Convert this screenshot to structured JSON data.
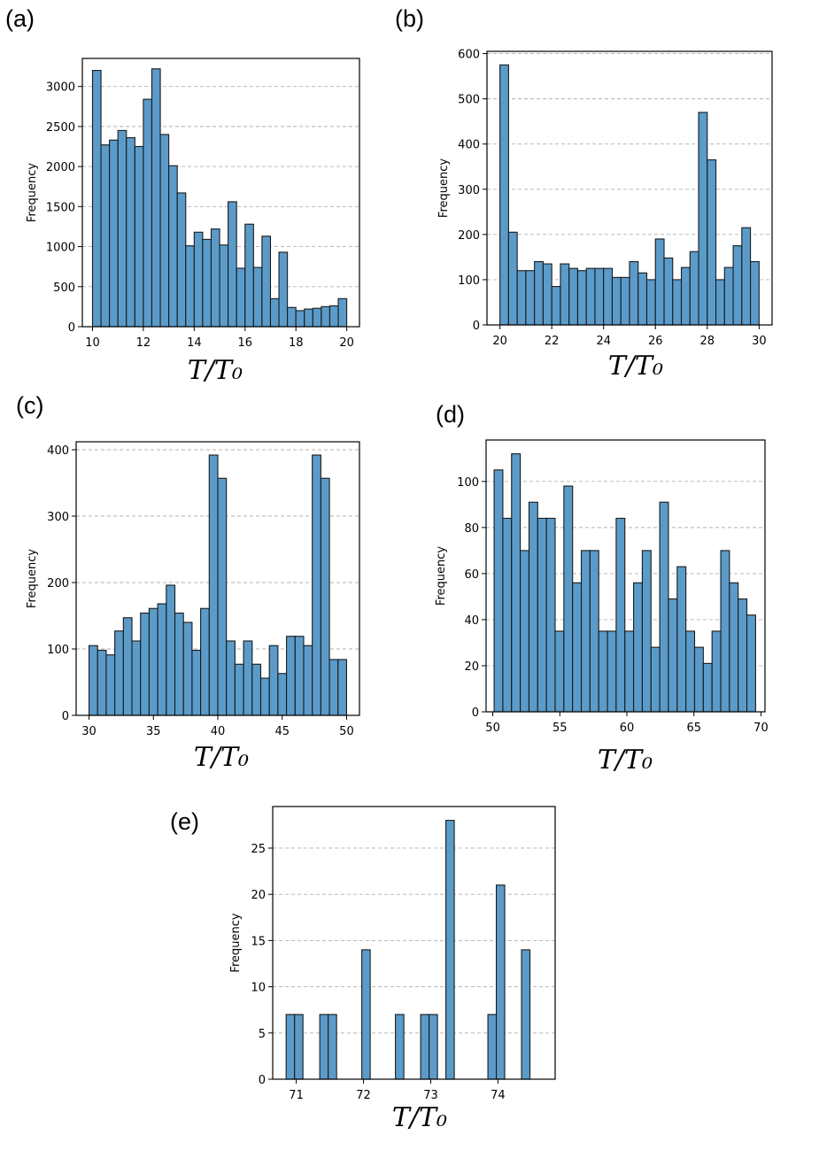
{
  "colors": {
    "bar_fill": "#5b9bc9",
    "bar_edge": "#1a1a1a",
    "grid": "#b0b0b0"
  },
  "chart_data": [
    {
      "panel": "(a)",
      "type": "bar",
      "xlabel": "T/T₀",
      "ylabel": "Frequency",
      "xlim": [
        9.6,
        20.5
      ],
      "ylim": [
        0,
        3350
      ],
      "bin_start": 10,
      "bin_width": 0.3333,
      "xticks": [
        10,
        12,
        14,
        16,
        18,
        20
      ],
      "yticks": [
        0,
        500,
        1000,
        1500,
        2000,
        2500,
        3000
      ],
      "values": [
        3200,
        2270,
        2330,
        2450,
        2360,
        2250,
        2840,
        3220,
        2400,
        2010,
        1670,
        1010,
        1180,
        1090,
        1220,
        1020,
        1560,
        730,
        1280,
        740,
        1130,
        350,
        930,
        240,
        200,
        220,
        230,
        250,
        260,
        350
      ]
    },
    {
      "panel": "(b)",
      "type": "bar",
      "xlabel": "T/T₀",
      "ylabel": "Frequency",
      "xlim": [
        19.5,
        30.5
      ],
      "ylim": [
        0,
        605
      ],
      "bin_start": 20,
      "bin_width": 0.3333,
      "xticks": [
        20,
        22,
        24,
        26,
        28,
        30
      ],
      "yticks": [
        0,
        100,
        200,
        300,
        400,
        500,
        600
      ],
      "values": [
        575,
        205,
        120,
        120,
        140,
        135,
        85,
        135,
        125,
        120,
        125,
        125,
        125,
        105,
        105,
        140,
        115,
        100,
        190,
        148,
        100,
        127,
        162,
        470,
        365,
        100,
        127,
        175,
        215,
        140
      ]
    },
    {
      "panel": "(c)",
      "type": "bar",
      "xlabel": "T/T₀",
      "ylabel": "Frequency",
      "xlim": [
        29.0,
        51.0
      ],
      "ylim": [
        0,
        412
      ],
      "bin_start": 30,
      "bin_width": 0.6667,
      "xticks": [
        30,
        35,
        40,
        45,
        50
      ],
      "yticks": [
        0,
        100,
        200,
        300,
        400
      ],
      "values": [
        105,
        98,
        91,
        127,
        147,
        112,
        154,
        161,
        168,
        196,
        154,
        140,
        98,
        161,
        392,
        357,
        112,
        77,
        112,
        77,
        56,
        105,
        63,
        119,
        119,
        105,
        392,
        357,
        84,
        84
      ]
    },
    {
      "panel": "(d)",
      "type": "bar",
      "xlabel": "T/T₀",
      "ylabel": "Frequency",
      "xlim": [
        49.5,
        70.3
      ],
      "ylim": [
        0,
        118
      ],
      "bin_start": 50.1,
      "bin_width": 0.65,
      "xticks": [
        50,
        55,
        60,
        65,
        70
      ],
      "yticks": [
        0,
        20,
        40,
        60,
        80,
        100
      ],
      "values": [
        105,
        84,
        112,
        70,
        91,
        84,
        84,
        35,
        98,
        56,
        70,
        70,
        35,
        35,
        84,
        35,
        56,
        70,
        28,
        91,
        49,
        63,
        35,
        28,
        21,
        35,
        70,
        56,
        49,
        42
      ]
    },
    {
      "panel": "(e)",
      "type": "bar",
      "xlabel": "T/T₀",
      "ylabel": "Frequency",
      "xlim": [
        70.65,
        74.85
      ],
      "ylim": [
        0,
        29.5
      ],
      "bin_start": 70.85,
      "bin_width": 0.125,
      "xticks": [
        71,
        72,
        73,
        74
      ],
      "yticks": [
        0,
        5,
        10,
        15,
        20,
        25
      ],
      "values": [
        7,
        7,
        0,
        0,
        7,
        7,
        0,
        0,
        0,
        14,
        0,
        0,
        0,
        7,
        0,
        0,
        7,
        7,
        0,
        28,
        0,
        0,
        0,
        0,
        7,
        21,
        0,
        0,
        14
      ]
    }
  ]
}
